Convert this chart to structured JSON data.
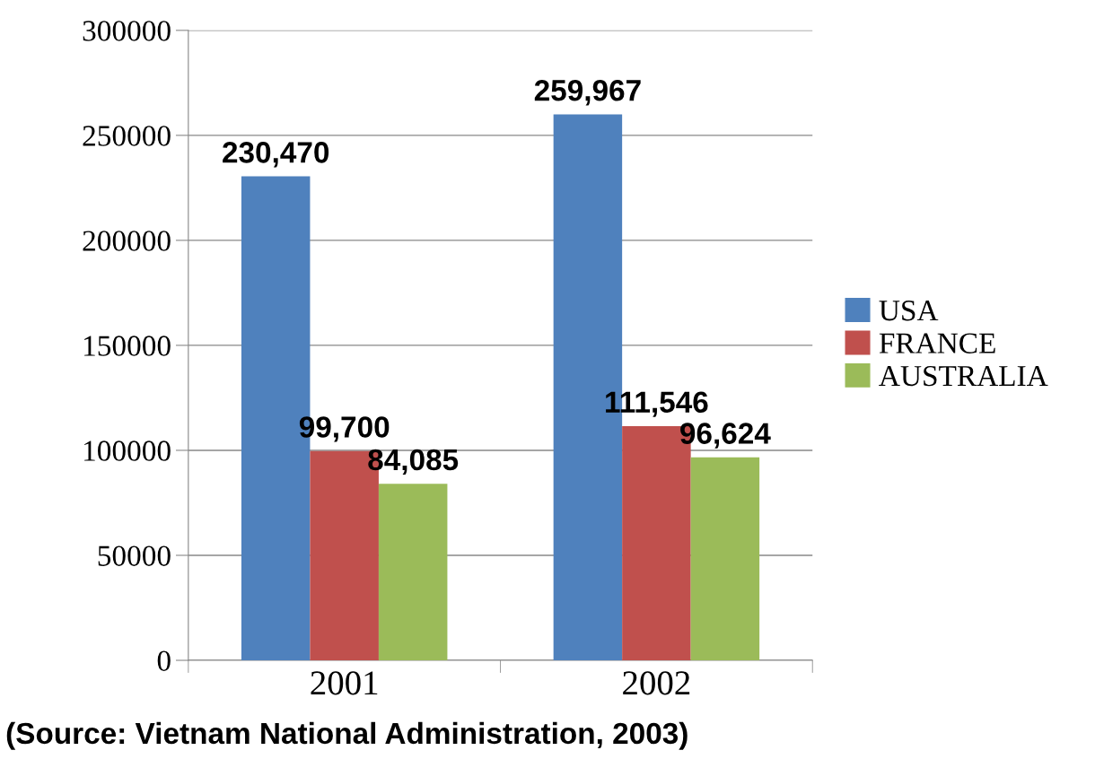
{
  "chart_data": {
    "type": "bar",
    "categories": [
      "2001",
      "2002"
    ],
    "series": [
      {
        "name": "USA",
        "color": "#4f81bd",
        "values": [
          230470,
          259967
        ],
        "value_labels": [
          "230,470",
          "259,967"
        ]
      },
      {
        "name": "FRANCE",
        "color": "#c0504d",
        "values": [
          99700,
          111546
        ],
        "value_labels": [
          "99,700",
          "111,546"
        ]
      },
      {
        "name": "AUSTRALIA",
        "color": "#9bbb59",
        "values": [
          84085,
          96624
        ],
        "value_labels": [
          "84,085",
          "96,624"
        ]
      }
    ],
    "ylim": [
      0,
      300000
    ],
    "yticks": [
      0,
      50000,
      100000,
      150000,
      200000,
      250000,
      300000
    ],
    "grid": "y",
    "legend": "right",
    "annotations": [
      "(Source: Vietnam National Administration, 2003)"
    ]
  }
}
